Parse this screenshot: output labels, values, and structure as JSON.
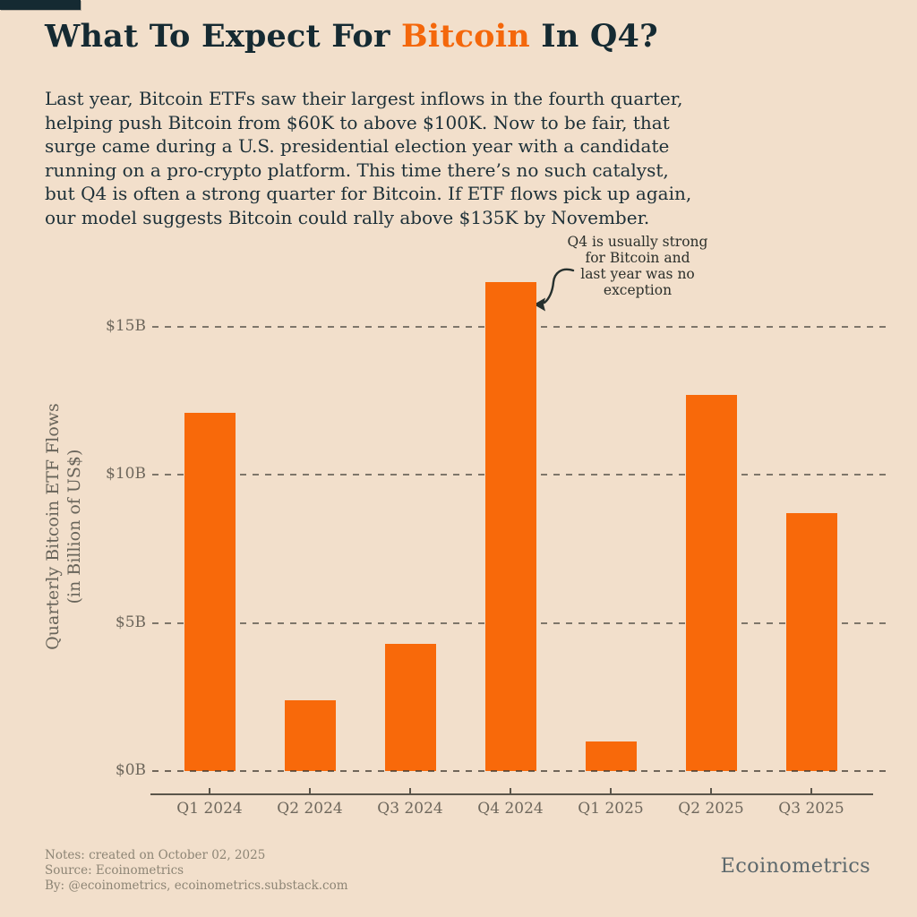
{
  "page": {
    "background_color": "#F2DFCB",
    "accent_orange": "#F4670B",
    "ink_navy": "#152A32"
  },
  "header": {
    "title": {
      "prefix": "What To Expect For ",
      "highlight": "Bitcoin",
      "suffix": " In Q4?"
    },
    "intro_lines": [
      "Last year, Bitcoin ETFs saw their largest inflows in the fourth quarter,",
      "helping push Bitcoin from $60K to above $100K. Now to be fair, that",
      "surge came during a U.S. presidential election year with a candidate",
      "running on a pro-crypto platform. This time there’s no such catalyst,",
      "but Q4 is often a strong quarter for Bitcoin. If ETF flows pick up again,",
      "our model suggests Bitcoin could rally above $135K by November."
    ]
  },
  "annotation": {
    "lines": [
      "Q4 is usually strong",
      "for Bitcoin and",
      "last year was no",
      "exception"
    ],
    "points_to": "Q4 2024"
  },
  "chart_data": {
    "type": "bar",
    "categories": [
      "Q1 2024",
      "Q2 2024",
      "Q3 2024",
      "Q4 2024",
      "Q1 2025",
      "Q2 2025",
      "Q3 2025"
    ],
    "values": [
      12.1,
      2.4,
      4.3,
      16.5,
      1.0,
      12.7,
      8.7
    ],
    "ylabel": "Quarterly Bitcoin ETF Flows (in Billion of US$)",
    "ylabel_line1": "Quarterly Bitcoin ETF Flows",
    "ylabel_line2": "(in Billion of US$)",
    "ytick_values": [
      15,
      10,
      5,
      0
    ],
    "ytick_labels": [
      "$15B",
      "$10B",
      "$5B",
      "$0B"
    ],
    "ylim": [
      0,
      16.6
    ],
    "grid": "horizontal-dashed",
    "legend": "none",
    "bar_color": "#F8690A",
    "units": "billion USD"
  },
  "footer": {
    "notes": [
      "Notes: created on October 02, 2025",
      "Source: Ecoinometrics",
      "By: @ecoinometrics, ecoinometrics.substack.com"
    ],
    "logo": "Ecoinometrics"
  }
}
